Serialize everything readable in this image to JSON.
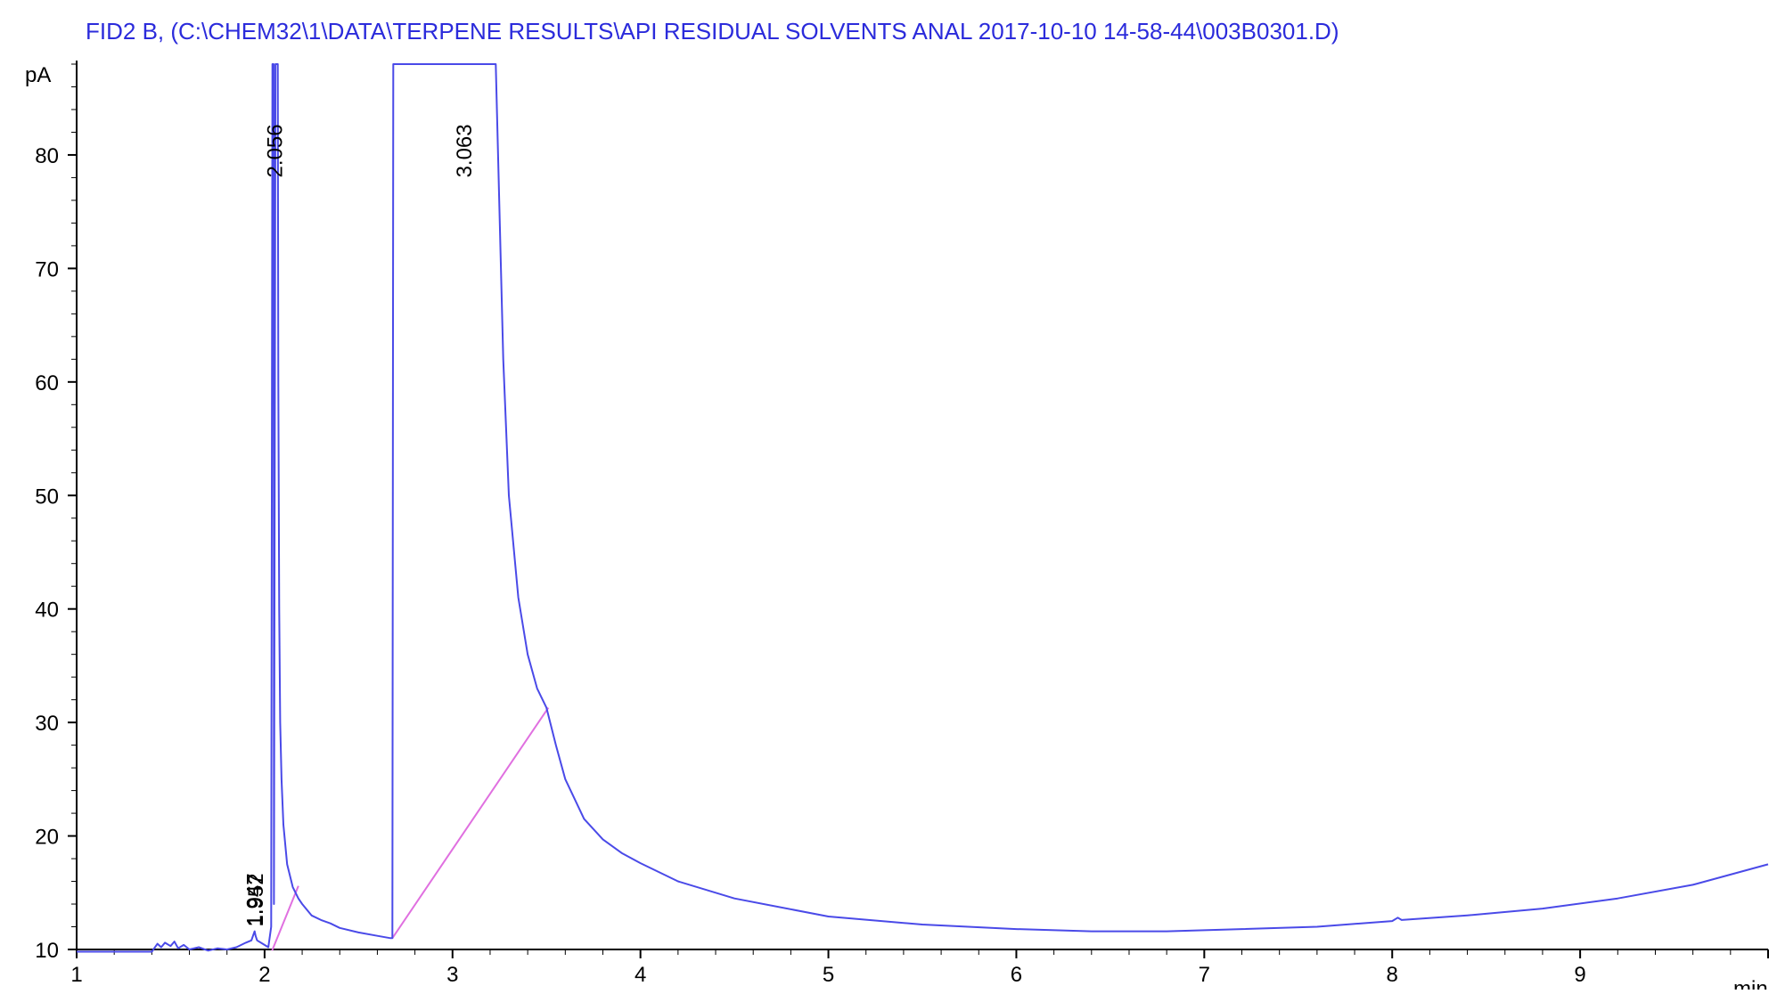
{
  "chart_data": {
    "type": "line",
    "title": "FID2 B,  (C:\\CHEM32\\1\\DATA\\TERPENE RESULTS\\API RESIDUAL SOLVENTS ANAL 2017-10-10 14-58-44\\003B0301.D)",
    "xlabel": "min",
    "ylabel": "pA",
    "xlim": [
      1,
      10
    ],
    "ylim": [
      10,
      88
    ],
    "x_ticks": [
      1,
      2,
      3,
      4,
      5,
      6,
      7,
      8,
      9
    ],
    "y_ticks": [
      10,
      20,
      30,
      40,
      50,
      60,
      70,
      80
    ],
    "grid": false,
    "colors": {
      "signal": "#4a4ae8",
      "baseline": "#e070e0",
      "axis": "#000000",
      "title": "#2b2bdb"
    },
    "series": [
      {
        "x": [
          1.0,
          1.2,
          1.4,
          1.43,
          1.45,
          1.47,
          1.5,
          1.52,
          1.54,
          1.57,
          1.6,
          1.65,
          1.7,
          1.75,
          1.8,
          1.85,
          1.9,
          1.93,
          1.947,
          1.952,
          1.96,
          1.99,
          2.02,
          2.035,
          2.042,
          2.048,
          2.05,
          2.058,
          2.062,
          2.067,
          2.07,
          2.073,
          2.078,
          2.083,
          2.09,
          2.1,
          2.12,
          2.15,
          2.18,
          2.2,
          2.25,
          2.3,
          2.35,
          2.4,
          2.5,
          2.6,
          2.67,
          2.68,
          2.685,
          2.69,
          2.7,
          2.75,
          2.85,
          3.0,
          3.1,
          3.2,
          3.23,
          3.25,
          3.27,
          3.3,
          3.35,
          3.4,
          3.45,
          3.5,
          3.55,
          3.6,
          3.7,
          3.8,
          3.9,
          4.0,
          4.2,
          4.5,
          5.0,
          5.5,
          6.0,
          6.4,
          6.8,
          7.2,
          7.6,
          8.0,
          8.03,
          8.05,
          8.4,
          8.8,
          9.2,
          9.6,
          10.0
        ],
        "y": [
          9.8,
          9.8,
          9.8,
          10.5,
          10.2,
          10.6,
          10.3,
          10.7,
          10.1,
          10.4,
          10.0,
          10.2,
          9.9,
          10.1,
          10.0,
          10.2,
          10.6,
          10.8,
          11.6,
          11.2,
          10.8,
          10.5,
          10.2,
          12.0,
          88.0,
          88.0,
          14.0,
          88.0,
          88.0,
          88.0,
          88.0,
          60.0,
          40.0,
          30.0,
          25.0,
          21.0,
          17.5,
          15.5,
          14.5,
          14.0,
          13.0,
          12.6,
          12.3,
          11.9,
          11.5,
          11.2,
          11.0,
          11.0,
          88.0,
          88.0,
          88.0,
          88.0,
          88.0,
          88.0,
          88.0,
          88.0,
          88.0,
          75.0,
          62.0,
          50.0,
          41.0,
          36.0,
          33.0,
          31.3,
          28.0,
          25.0,
          21.5,
          19.7,
          18.5,
          17.6,
          16.0,
          14.5,
          12.9,
          12.2,
          11.8,
          11.6,
          11.6,
          11.8,
          12.0,
          12.5,
          12.8,
          12.6,
          13.0,
          13.6,
          14.5,
          15.7,
          17.5
        ]
      }
    ],
    "baselines": [
      {
        "x": [
          2.04,
          2.18
        ],
        "y": [
          9.9,
          15.6
        ]
      },
      {
        "x": [
          2.68,
          3.51
        ],
        "y": [
          11.0,
          31.3
        ]
      }
    ],
    "peak_labels": [
      {
        "text": "1.947",
        "x": 1.947,
        "y": 12.0
      },
      {
        "text": "1.952",
        "x": 1.952,
        "y": 12.0
      },
      {
        "text": "2.056",
        "x": 2.056,
        "y": 78.0
      },
      {
        "text": "3.063",
        "x": 3.063,
        "y": 78.0
      }
    ]
  }
}
